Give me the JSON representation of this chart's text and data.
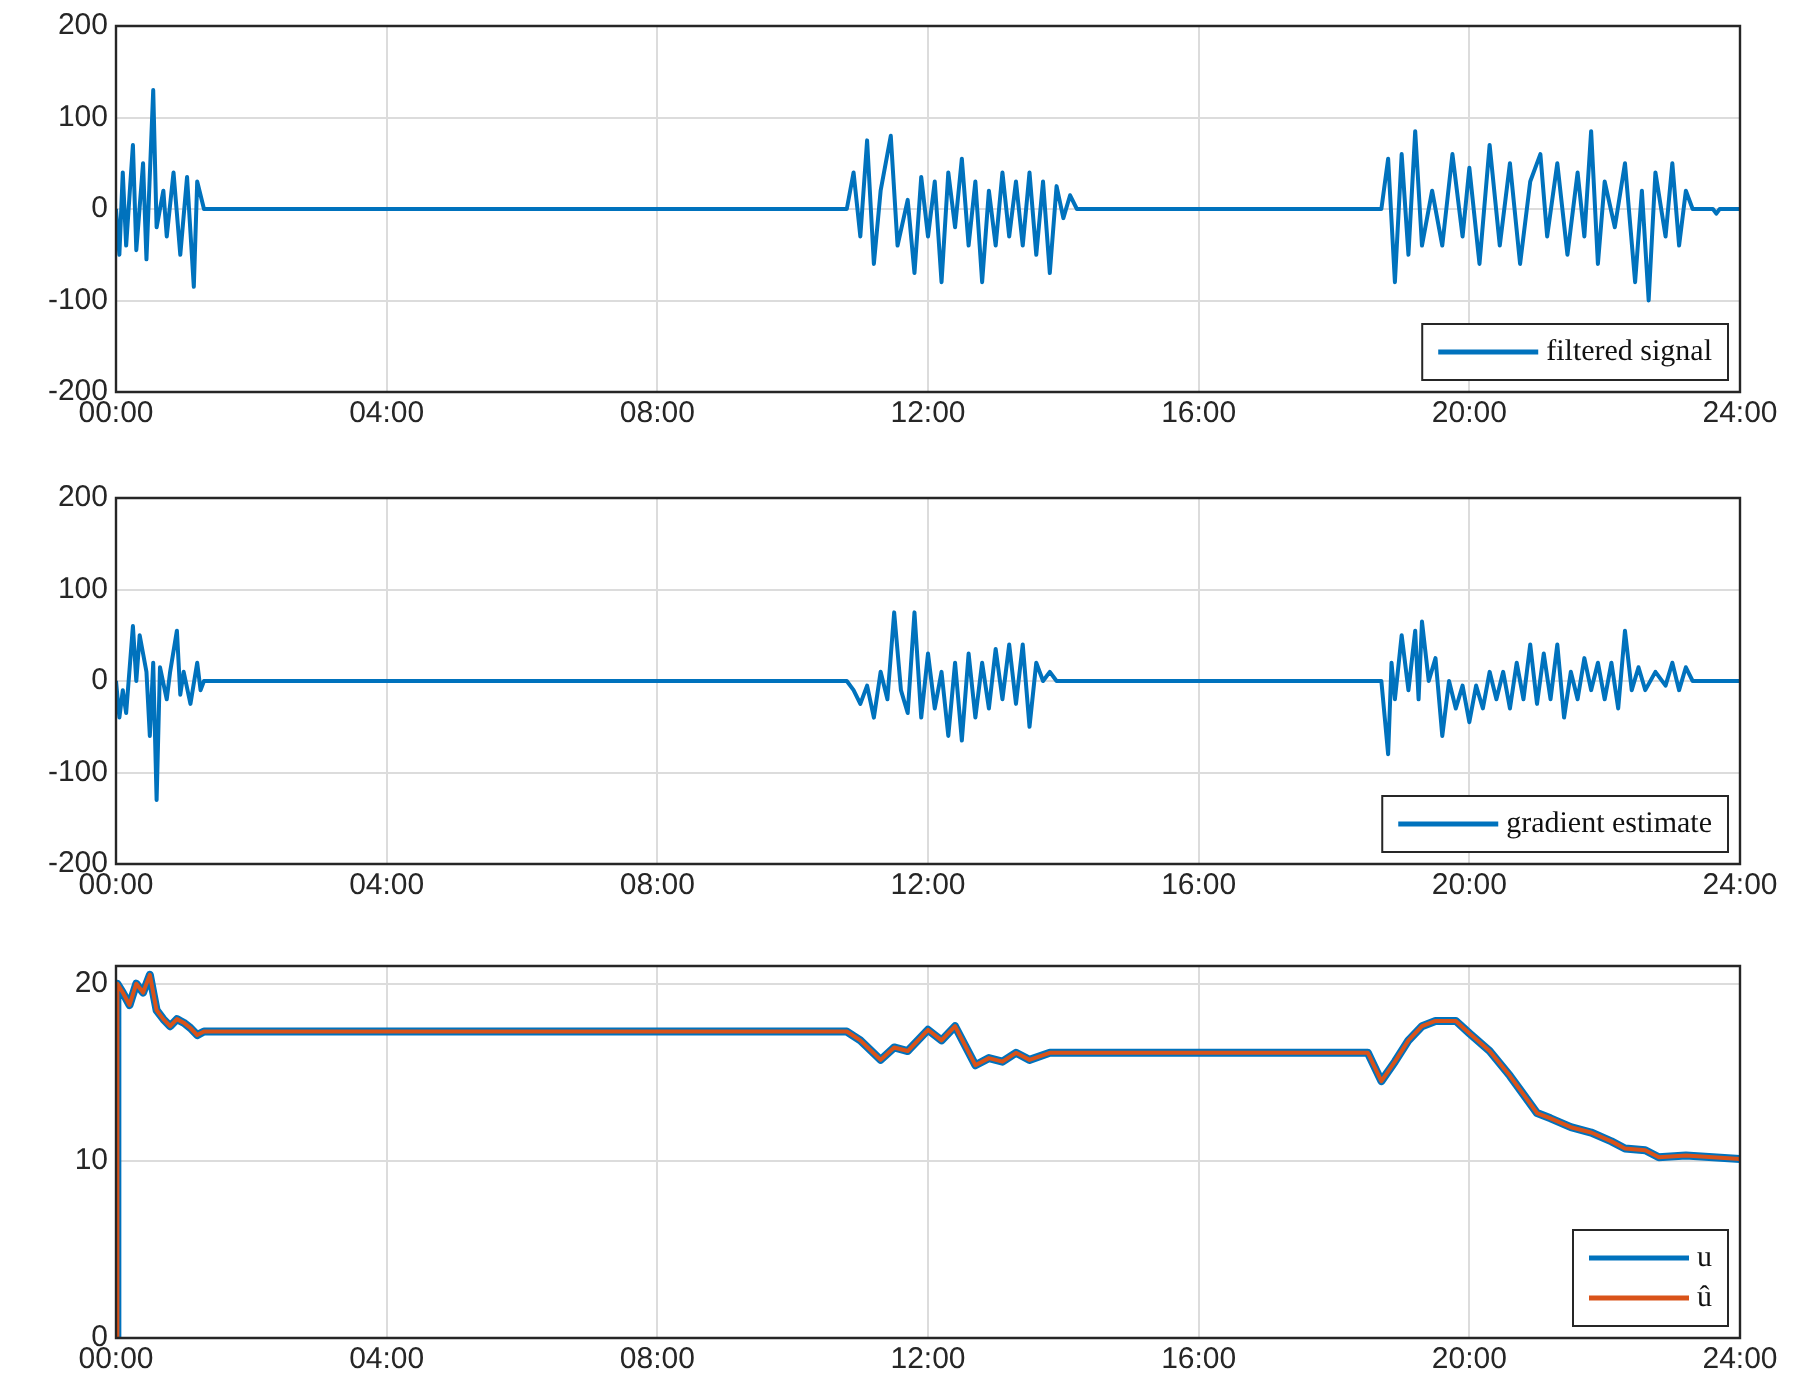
{
  "chart_data": [
    {
      "type": "line",
      "xlim": [
        0,
        24
      ],
      "xticks": [
        {
          "value": 0,
          "label": "00:00"
        },
        {
          "value": 4,
          "label": "04:00"
        },
        {
          "value": 8,
          "label": "08:00"
        },
        {
          "value": 12,
          "label": "12:00"
        },
        {
          "value": 16,
          "label": "16:00"
        },
        {
          "value": 20,
          "label": "20:00"
        },
        {
          "value": 24,
          "label": "24:00"
        }
      ],
      "ylim": [
        -200,
        200
      ],
      "yticks": [
        -200,
        -100,
        0,
        100,
        200
      ],
      "grid": true,
      "legend": "bottom right",
      "series": [
        {
          "name": "filtered signal",
          "color": "#0072bd",
          "x": [
            0,
            0.05,
            0.1,
            0.15,
            0.25,
            0.3,
            0.4,
            0.45,
            0.55,
            0.6,
            0.7,
            0.75,
            0.85,
            0.95,
            1.05,
            1.15,
            1.2,
            1.3,
            10.8,
            10.9,
            11.0,
            11.1,
            11.2,
            11.3,
            11.45,
            11.55,
            11.7,
            11.8,
            11.9,
            12.0,
            12.1,
            12.2,
            12.3,
            12.4,
            12.5,
            12.6,
            12.7,
            12.8,
            12.9,
            13.0,
            13.1,
            13.2,
            13.3,
            13.4,
            13.5,
            13.6,
            13.7,
            13.8,
            13.9,
            14.0,
            14.1,
            14.2,
            18.7,
            18.8,
            18.9,
            19.0,
            19.1,
            19.2,
            19.3,
            19.45,
            19.6,
            19.75,
            19.9,
            20.0,
            20.15,
            20.3,
            20.45,
            20.6,
            20.75,
            20.9,
            21.05,
            21.15,
            21.3,
            21.45,
            21.6,
            21.7,
            21.8,
            21.9,
            22.0,
            22.15,
            22.3,
            22.45,
            22.55,
            22.65,
            22.75,
            22.9,
            23.0,
            23.1,
            23.2,
            23.3,
            23.6,
            23.65,
            23.7,
            24
          ],
          "values": [
            0,
            -50,
            40,
            -40,
            70,
            -45,
            50,
            -55,
            130,
            -20,
            20,
            -30,
            40,
            -50,
            35,
            -85,
            30,
            0,
            0,
            40,
            -30,
            75,
            -60,
            20,
            80,
            -40,
            10,
            -70,
            35,
            -30,
            30,
            -80,
            40,
            -20,
            55,
            -40,
            30,
            -80,
            20,
            -40,
            40,
            -30,
            30,
            -40,
            40,
            -50,
            30,
            -70,
            25,
            -10,
            15,
            0,
            0,
            55,
            -80,
            60,
            -50,
            85,
            -40,
            20,
            -40,
            60,
            -30,
            45,
            -60,
            70,
            -40,
            50,
            -60,
            30,
            60,
            -30,
            50,
            -50,
            40,
            -30,
            85,
            -60,
            30,
            -20,
            50,
            -80,
            20,
            -100,
            40,
            -30,
            50,
            -40,
            20,
            0,
            0,
            -5,
            0,
            0
          ]
        }
      ]
    },
    {
      "type": "line",
      "xlim": [
        0,
        24
      ],
      "xticks": [
        {
          "value": 0,
          "label": "00:00"
        },
        {
          "value": 4,
          "label": "04:00"
        },
        {
          "value": 8,
          "label": "08:00"
        },
        {
          "value": 12,
          "label": "12:00"
        },
        {
          "value": 16,
          "label": "16:00"
        },
        {
          "value": 20,
          "label": "20:00"
        },
        {
          "value": 24,
          "label": "24:00"
        }
      ],
      "ylim": [
        -200,
        200
      ],
      "yticks": [
        -200,
        -100,
        0,
        100,
        200
      ],
      "grid": true,
      "legend": "bottom right",
      "series": [
        {
          "name": "gradient estimate",
          "color": "#0072bd",
          "x": [
            0,
            0.05,
            0.1,
            0.15,
            0.25,
            0.3,
            0.35,
            0.45,
            0.5,
            0.55,
            0.6,
            0.65,
            0.75,
            0.8,
            0.9,
            0.95,
            1.0,
            1.1,
            1.2,
            1.25,
            1.3,
            10.8,
            10.9,
            11.0,
            11.1,
            11.2,
            11.3,
            11.4,
            11.5,
            11.6,
            11.7,
            11.8,
            11.9,
            12.0,
            12.1,
            12.2,
            12.3,
            12.4,
            12.5,
            12.6,
            12.7,
            12.8,
            12.9,
            13.0,
            13.1,
            13.2,
            13.3,
            13.4,
            13.5,
            13.6,
            13.7,
            13.8,
            13.9,
            14.2,
            18.7,
            18.75,
            18.8,
            18.85,
            18.9,
            19.0,
            19.1,
            19.2,
            19.25,
            19.3,
            19.4,
            19.5,
            19.6,
            19.7,
            19.8,
            19.9,
            20.0,
            20.1,
            20.2,
            20.3,
            20.4,
            20.5,
            20.6,
            20.7,
            20.8,
            20.9,
            21.0,
            21.1,
            21.2,
            21.3,
            21.4,
            21.5,
            21.6,
            21.7,
            21.8,
            21.9,
            22.0,
            22.1,
            22.2,
            22.3,
            22.4,
            22.5,
            22.6,
            22.75,
            22.9,
            23.0,
            23.1,
            23.2,
            23.3,
            24
          ],
          "values": [
            0,
            -40,
            -10,
            -35,
            60,
            0,
            50,
            10,
            -60,
            20,
            -130,
            15,
            -20,
            10,
            55,
            -15,
            10,
            -25,
            20,
            -10,
            0,
            0,
            -10,
            -25,
            -5,
            -40,
            10,
            -20,
            75,
            -10,
            -35,
            75,
            -40,
            30,
            -30,
            10,
            -60,
            20,
            -65,
            30,
            -40,
            20,
            -30,
            35,
            -20,
            40,
            -25,
            40,
            -50,
            20,
            0,
            10,
            0,
            0,
            0,
            -40,
            -80,
            20,
            -20,
            50,
            -10,
            55,
            -20,
            65,
            0,
            25,
            -60,
            0,
            -30,
            -5,
            -45,
            -5,
            -30,
            10,
            -20,
            10,
            -30,
            20,
            -20,
            40,
            -25,
            30,
            -20,
            40,
            -40,
            10,
            -20,
            25,
            -10,
            20,
            -20,
            20,
            -30,
            55,
            -10,
            15,
            -10,
            10,
            -5,
            20,
            -10,
            15,
            0,
            0
          ]
        }
      ]
    },
    {
      "type": "line",
      "xlim": [
        0,
        24
      ],
      "xticks": [
        {
          "value": 0,
          "label": "00:00"
        },
        {
          "value": 4,
          "label": "04:00"
        },
        {
          "value": 8,
          "label": "08:00"
        },
        {
          "value": 12,
          "label": "12:00"
        },
        {
          "value": 16,
          "label": "16:00"
        },
        {
          "value": 20,
          "label": "20:00"
        },
        {
          "value": 24,
          "label": "24:00"
        }
      ],
      "ylim": [
        0,
        21
      ],
      "yticks": [
        0,
        10,
        20
      ],
      "grid": true,
      "legend": "bottom right",
      "x": [
        0,
        0.02,
        0.1,
        0.2,
        0.3,
        0.4,
        0.5,
        0.6,
        0.7,
        0.8,
        0.9,
        1.0,
        1.1,
        1.2,
        1.3,
        1.4,
        10.8,
        11.0,
        11.3,
        11.5,
        11.7,
        12.0,
        12.2,
        12.4,
        12.7,
        12.9,
        13.1,
        13.3,
        13.5,
        13.8,
        14.2,
        18.5,
        18.7,
        18.9,
        19.1,
        19.3,
        19.5,
        19.8,
        20.0,
        20.3,
        20.6,
        21.0,
        21.2,
        21.5,
        21.8,
        22.1,
        22.3,
        22.6,
        22.8,
        23.2,
        24
      ],
      "series": [
        {
          "name": "u",
          "color": "#0072bd",
          "values": [
            0,
            20,
            19.5,
            18.8,
            20,
            19.5,
            20.5,
            18.5,
            18,
            17.6,
            18,
            17.8,
            17.5,
            17.1,
            17.3,
            17.3,
            17.3,
            16.8,
            15.7,
            16.4,
            16.2,
            17.4,
            16.8,
            17.6,
            15.4,
            15.8,
            15.6,
            16.1,
            15.7,
            16.1,
            16.1,
            16.1,
            14.5,
            15.6,
            16.8,
            17.6,
            17.9,
            17.9,
            17.2,
            16.2,
            14.8,
            12.7,
            12.4,
            11.9,
            11.6,
            11.1,
            10.7,
            10.6,
            10.2,
            10.3,
            10.1
          ]
        },
        {
          "name": "û",
          "color": "#d95319",
          "values": [
            0,
            20,
            19.5,
            18.8,
            20,
            19.5,
            20.5,
            18.5,
            18,
            17.6,
            18,
            17.8,
            17.5,
            17.1,
            17.3,
            17.3,
            17.3,
            16.8,
            15.7,
            16.4,
            16.2,
            17.4,
            16.8,
            17.6,
            15.4,
            15.8,
            15.6,
            16.1,
            15.7,
            16.1,
            16.1,
            16.1,
            14.5,
            15.6,
            16.8,
            17.6,
            17.9,
            17.9,
            17.2,
            16.2,
            14.8,
            12.7,
            12.4,
            11.9,
            11.6,
            11.1,
            10.7,
            10.6,
            10.2,
            10.3,
            10.1
          ]
        }
      ]
    }
  ]
}
